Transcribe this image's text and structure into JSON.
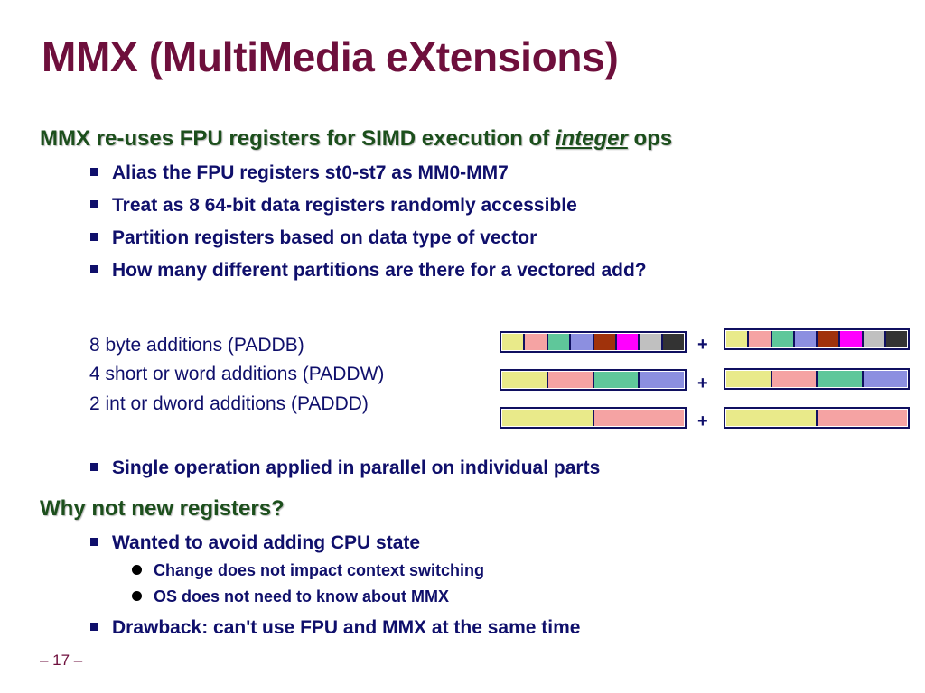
{
  "title": "MMX (MultiMedia eXtensions)",
  "heading1": {
    "prefix": "MMX re-uses FPU registers for SIMD execution of ",
    "emphasis": "integer",
    "suffix": " ops"
  },
  "bullets1": [
    "Alias the FPU registers st0-st7 as MM0-MM7",
    "Treat as 8 64-bit data registers randomly accessible",
    "Partition registers based on data type of vector",
    "How many different partitions are there for a vectored add?"
  ],
  "partitions": [
    {
      "label": "8 byte additions (PADDB)",
      "operator": "+",
      "colors": [
        "#e9ea8a",
        "#f5a3a3",
        "#5fc79a",
        "#8c8fe0",
        "#a0320b",
        "#ff00ff",
        "#c0c0c0",
        "#333333"
      ]
    },
    {
      "label": "4 short or word additions (PADDW)",
      "operator": "+",
      "colors": [
        "#e9ea8a",
        "#f5a3a3",
        "#5fc79a",
        "#8c8fe0"
      ]
    },
    {
      "label": "2 int or dword additions (PADDD)",
      "operator": "+",
      "colors": [
        "#e9ea8a",
        "#f5a3a3"
      ]
    }
  ],
  "bullet_single": "Single operation applied in parallel on individual parts",
  "heading2": "Why not new registers?",
  "bullets2": [
    "Wanted to avoid adding CPU state",
    "Drawback: can't use FPU and MMX at the same time"
  ],
  "subbullets": [
    "Change does not impact context switching",
    "OS does not need to know about MMX"
  ],
  "footer": "– 17 –"
}
